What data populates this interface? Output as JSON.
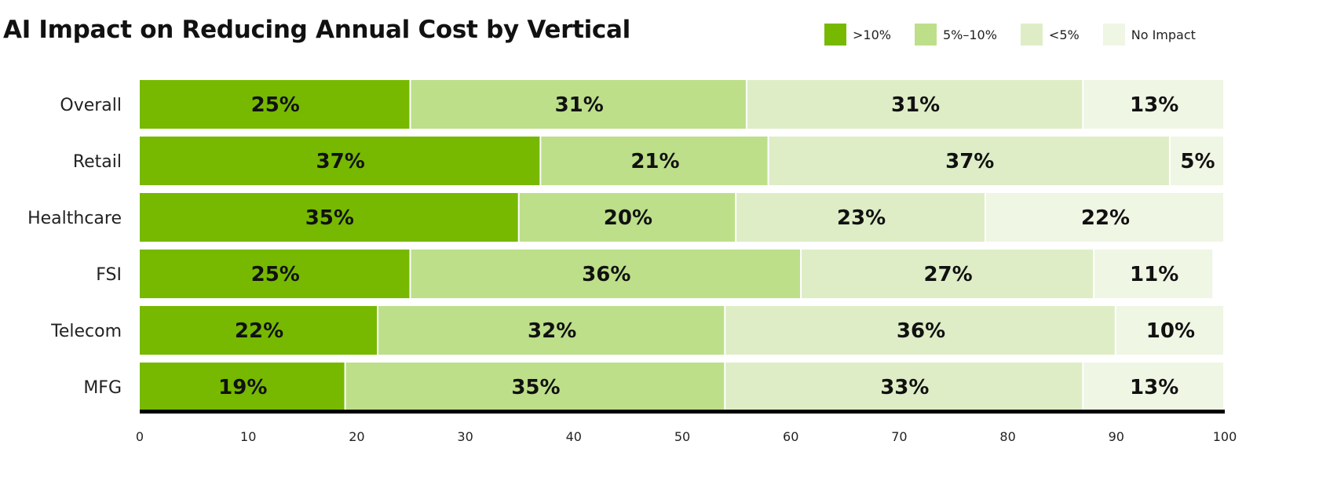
{
  "chart_data": {
    "type": "bar",
    "orientation": "horizontal",
    "stacked": true,
    "title": "AI Impact on Reducing Annual Cost by Vertical",
    "categories": [
      "Overall",
      "Retail",
      "Healthcare",
      "FSI",
      "Telecom",
      "MFG"
    ],
    "series": [
      {
        "name": ">10%",
        "color": "#76b900",
        "values": [
          25,
          37,
          35,
          25,
          22,
          19
        ]
      },
      {
        "name": "5%–10%",
        "color": "#bddf8a",
        "values": [
          31,
          21,
          20,
          36,
          32,
          35
        ]
      },
      {
        "name": "<5%",
        "color": "#deedc6",
        "values": [
          31,
          37,
          23,
          27,
          36,
          33
        ]
      },
      {
        "name": "No Impact",
        "color": "#eff6e4",
        "values": [
          13,
          5,
          22,
          11,
          10,
          13
        ]
      }
    ],
    "value_suffix": "%",
    "xlim": [
      0,
      100
    ],
    "xticks": [
      "0",
      "10",
      "20",
      "30",
      "40",
      "50",
      "60",
      "70",
      "80",
      "90",
      "100"
    ],
    "grid": false,
    "legend": "top-right"
  }
}
